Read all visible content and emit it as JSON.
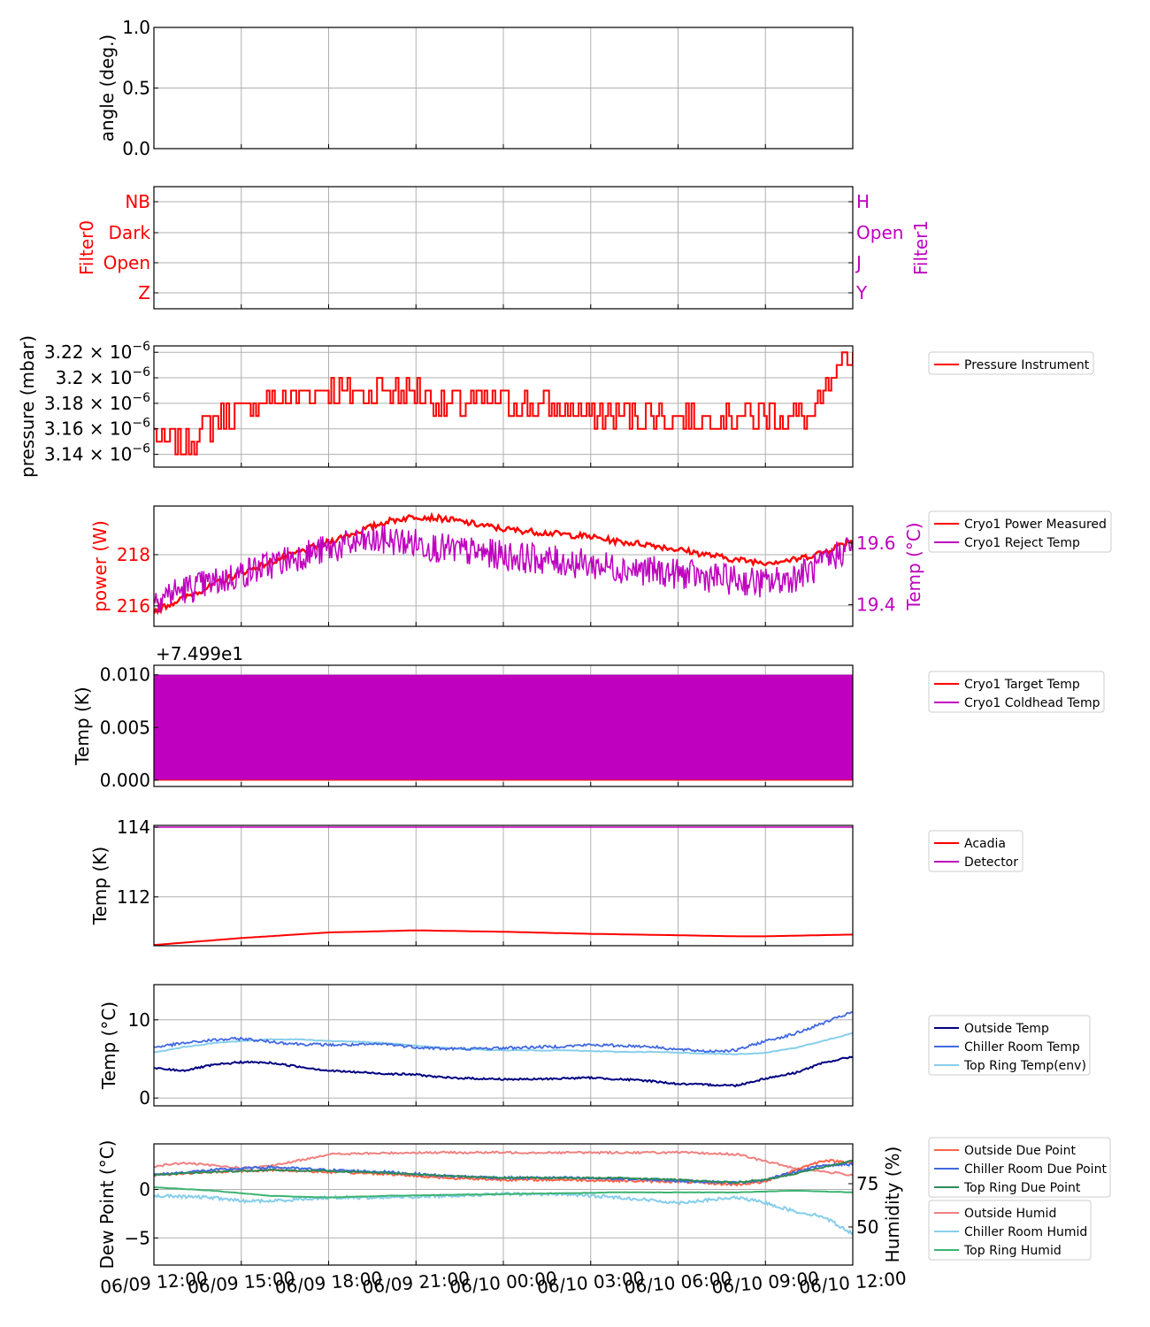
{
  "colors": {
    "red": "#ff0000",
    "magenta": "#bf00bf",
    "navy": "#000080",
    "royalblue": "#4169e1",
    "skyblue": "#87ceeb",
    "seagreen": "#2e8b57",
    "lightcoral": "#f08080",
    "mediumseagreen": "#3cb371",
    "tomato": "#ff6347",
    "grid": "#b0b0b0"
  },
  "x_axis": {
    "range": [
      "06/09 12:00",
      "06/10 12:00"
    ],
    "tick_labels": [
      "06/09 12:00",
      "06/09 15:00",
      "06/09 18:00",
      "06/09 21:00",
      "06/10 00:00",
      "06/10 03:00",
      "06/10 06:00",
      "06/10 09:00",
      "06/10 12:00"
    ]
  },
  "chart_data": [
    {
      "type": "line",
      "panel": "angle",
      "ylabel": "angle (deg.)",
      "ylim": [
        0.0,
        1.0
      ],
      "yticks": [
        "0.0",
        "0.5",
        "1.0"
      ],
      "grid": true,
      "series": []
    },
    {
      "type": "line",
      "panel": "filter",
      "ylabel": "Filter0",
      "ylabel_right": "Filter1",
      "yticks_left": [
        "Z",
        "Open",
        "Dark",
        "NB"
      ],
      "yticks_right": [
        "Y",
        "J",
        "Open",
        "H"
      ],
      "grid": true,
      "series": []
    },
    {
      "type": "line",
      "panel": "pressure",
      "ylabel": "pressure (mbar)",
      "yticks": [
        "3.14",
        "3.16",
        "3.18",
        "3.2",
        "3.22"
      ],
      "ytick_exponent": "−6",
      "ytick_suffix": " × 10",
      "ylim": [
        3.13e-06,
        3.225e-06
      ],
      "legend": [
        "Pressure Instrument"
      ],
      "legend_position": "outside-right",
      "series": [
        {
          "name": "Pressure Instrument",
          "color": "red",
          "x_hours": [
            0,
            0.3,
            0.4,
            1.2,
            1.5,
            2.5,
            3.5,
            5.5,
            6.5,
            8,
            9,
            10,
            12,
            16,
            19,
            21,
            22.5,
            23.5,
            24
          ],
          "values": [
            3.16e-06,
            3.15e-06,
            3.15e-06,
            3.15e-06,
            3.16e-06,
            3.17e-06,
            3.18e-06,
            3.19e-06,
            3.19e-06,
            3.19e-06,
            3.19e-06,
            3.18e-06,
            3.18e-06,
            3.17e-06,
            3.17e-06,
            3.17e-06,
            3.17e-06,
            3.2e-06,
            3.22e-06
          ]
        }
      ]
    },
    {
      "type": "line",
      "panel": "cryo-power",
      "ylabel": "power (W)",
      "ylabel_right": "Temp (°C)",
      "yticks": [
        "216",
        "218"
      ],
      "yticks_right": [
        "19.4",
        "19.6"
      ],
      "ylim": [
        215.2,
        219.9
      ],
      "ylim_right": [
        19.33,
        19.72
      ],
      "legend": [
        "Cryo1 Power Measured",
        "Cryo1 Reject Temp"
      ],
      "legend_position": "outside-right",
      "series": [
        {
          "name": "Cryo1 Power Measured",
          "color": "red",
          "x_hours": [
            0,
            1,
            2,
            3,
            4,
            5,
            6,
            7,
            8,
            9,
            10,
            11,
            12,
            13,
            14,
            15,
            16,
            17,
            18,
            19,
            20,
            21,
            22,
            23,
            24
          ],
          "values": [
            215.8,
            216.3,
            216.8,
            217.3,
            217.7,
            218.1,
            218.5,
            218.9,
            219.3,
            219.5,
            219.4,
            219.2,
            219.0,
            218.9,
            218.8,
            218.7,
            218.5,
            218.4,
            218.2,
            218.0,
            217.8,
            217.7,
            217.8,
            218.1,
            218.6
          ]
        },
        {
          "name": "Cryo1 Reject Temp",
          "color": "magenta",
          "x_hours": [
            0,
            1,
            2,
            3,
            4,
            5,
            6,
            7,
            8,
            9,
            10,
            11,
            12,
            13,
            14,
            15,
            16,
            17,
            18,
            19,
            20,
            21,
            22,
            23,
            24
          ],
          "values": [
            19.42,
            19.45,
            19.47,
            19.5,
            19.53,
            19.56,
            19.58,
            19.6,
            19.61,
            19.6,
            19.58,
            19.57,
            19.56,
            19.55,
            19.54,
            19.53,
            19.52,
            19.51,
            19.5,
            19.49,
            19.48,
            19.47,
            19.49,
            19.53,
            19.6
          ]
        }
      ]
    },
    {
      "type": "line",
      "panel": "cryo-temp",
      "ylabel": "Temp (K)",
      "offset_text": "+7.499e1",
      "yticks": [
        "0.000",
        "0.005",
        "0.010"
      ],
      "ylim": [
        -0.0006,
        0.0109
      ],
      "legend": [
        "Cryo1 Target Temp",
        "Cryo1 Coldhead Temp"
      ],
      "legend_position": "outside-right",
      "series": [
        {
          "name": "Cryo1 Target Temp",
          "color": "red",
          "x_hours": [
            0,
            24
          ],
          "values": [
            0.0,
            0.0
          ]
        },
        {
          "name": "Cryo1 Coldhead Temp",
          "color": "magenta",
          "x_hours": [
            0,
            24
          ],
          "values": [
            0.0,
            0.01
          ],
          "fill_between": true
        }
      ]
    },
    {
      "type": "line",
      "panel": "detector",
      "ylabel": "Temp (K)",
      "yticks": [
        "112",
        "114"
      ],
      "ylim": [
        110.6,
        114.05
      ],
      "legend": [
        "Acadia",
        "Detector"
      ],
      "legend_position": "outside-right",
      "series": [
        {
          "name": "Acadia",
          "color": "red",
          "x_hours": [
            0,
            3,
            6,
            9,
            12,
            15,
            18,
            20,
            21,
            24
          ],
          "values": [
            110.62,
            110.82,
            110.98,
            111.04,
            111.0,
            110.94,
            110.9,
            110.87,
            110.87,
            110.92
          ]
        },
        {
          "name": "Detector",
          "color": "magenta",
          "x_hours": [
            0,
            24
          ],
          "values": [
            114.0,
            114.0
          ]
        }
      ]
    },
    {
      "type": "line",
      "panel": "env-temp",
      "ylabel": "Temp (°C)",
      "yticks": [
        "0",
        "10"
      ],
      "ylim": [
        -1.0,
        14.5
      ],
      "legend": [
        "Outside Temp",
        "Chiller Room Temp",
        "Top Ring Temp(env)"
      ],
      "legend_position": "outside-right",
      "series": [
        {
          "name": "Outside Temp",
          "color": "navy",
          "x_hours": [
            0,
            1,
            2,
            3,
            4,
            5,
            6,
            7,
            8,
            9,
            10,
            11,
            12,
            13,
            14,
            15,
            16,
            17,
            18,
            19,
            20,
            21,
            22,
            23,
            24
          ],
          "values": [
            3.8,
            3.5,
            4.2,
            4.6,
            4.5,
            4.0,
            3.5,
            3.3,
            3.1,
            3.0,
            2.6,
            2.5,
            2.4,
            2.4,
            2.5,
            2.6,
            2.4,
            2.2,
            1.8,
            1.7,
            1.6,
            2.5,
            3.2,
            4.5,
            5.3
          ]
        },
        {
          "name": "Chiller Room Temp",
          "color": "royalblue",
          "x_hours": [
            0,
            1,
            2,
            3,
            4,
            5,
            6,
            7,
            8,
            9,
            10,
            11,
            12,
            13,
            14,
            15,
            16,
            17,
            18,
            19,
            20,
            21,
            22,
            23,
            24
          ],
          "values": [
            6.5,
            7.0,
            7.4,
            7.6,
            7.2,
            6.9,
            6.8,
            6.8,
            6.9,
            6.5,
            6.3,
            6.3,
            6.4,
            6.5,
            6.6,
            6.8,
            6.7,
            6.6,
            6.2,
            6.0,
            6.1,
            7.3,
            8.2,
            9.6,
            11.0
          ]
        },
        {
          "name": "Top Ring Temp(env)",
          "color": "skyblue",
          "x_hours": [
            0,
            1,
            2,
            3,
            4,
            5,
            6,
            7,
            8,
            9,
            10,
            11,
            12,
            13,
            14,
            15,
            16,
            17,
            18,
            19,
            20,
            21,
            22,
            23,
            24
          ],
          "values": [
            5.8,
            6.5,
            7.0,
            7.3,
            7.5,
            7.5,
            7.3,
            7.2,
            7.0,
            6.7,
            6.4,
            6.2,
            6.1,
            6.1,
            6.1,
            6.0,
            5.9,
            5.9,
            5.8,
            5.7,
            5.6,
            5.8,
            6.4,
            7.3,
            8.3
          ]
        }
      ]
    },
    {
      "type": "line",
      "panel": "dew",
      "ylabel": "Dew Point (°C)",
      "ylabel_right": "Humidity (%)",
      "yticks": [
        "−5",
        "0"
      ],
      "yticks_right": [
        "50",
        "75"
      ],
      "ylim": [
        -7.8,
        4.7
      ],
      "ylim_right": [
        28,
        98
      ],
      "legend": [
        "Outside Due Point",
        "Chiller Room Due Point",
        "Top Ring Due Point"
      ],
      "legend2": [
        "Outside Humid",
        "Chiller Room Humid",
        "Top Ring Humid"
      ],
      "legend_position": "outside-right",
      "series": [
        {
          "name": "Outside Due Point",
          "color": "tomato",
          "x_hours": [
            0,
            2,
            4,
            6,
            8,
            10,
            12,
            14,
            16,
            18,
            20,
            21,
            22,
            23,
            24
          ],
          "values": [
            1.5,
            1.8,
            2.0,
            1.8,
            1.6,
            1.2,
            1.0,
            1.0,
            0.9,
            0.8,
            0.5,
            0.8,
            2.0,
            3.0,
            2.8
          ]
        },
        {
          "name": "Chiller Room Due Point",
          "color": "royalblue",
          "x_hours": [
            0,
            2,
            4,
            6,
            8,
            10,
            12,
            14,
            16,
            18,
            20,
            21,
            22,
            23,
            24
          ],
          "values": [
            1.5,
            2.0,
            2.3,
            2.0,
            1.8,
            1.4,
            1.2,
            1.2,
            1.1,
            0.9,
            0.7,
            1.0,
            1.8,
            2.5,
            2.6
          ]
        },
        {
          "name": "Top Ring Due Point",
          "color": "seagreen",
          "x_hours": [
            0,
            2,
            4,
            6,
            8,
            10,
            12,
            14,
            16,
            18,
            20,
            21,
            22,
            23,
            24
          ],
          "values": [
            1.5,
            1.8,
            2.0,
            1.9,
            1.7,
            1.4,
            1.2,
            1.2,
            1.2,
            1.0,
            0.7,
            1.0,
            1.6,
            2.3,
            3.0
          ]
        },
        {
          "name": "Outside Humid",
          "color": "lightcoral",
          "axis": "right",
          "x_hours": [
            0,
            1,
            3,
            4,
            6,
            9,
            12,
            15,
            18,
            20,
            21,
            22,
            23,
            24
          ],
          "values": [
            85,
            87,
            84,
            85,
            92,
            93,
            93,
            93,
            93,
            92,
            88,
            84,
            82,
            80
          ]
        },
        {
          "name": "Chiller Room Humid",
          "color": "skyblue",
          "axis": "right",
          "x_hours": [
            0,
            2,
            3,
            4,
            6,
            8,
            10,
            12,
            14,
            16,
            18,
            20,
            21,
            22,
            23,
            24
          ],
          "values": [
            68,
            67,
            65,
            65,
            67,
            67,
            68,
            69,
            69,
            67,
            64,
            67,
            64,
            59,
            56,
            46
          ]
        },
        {
          "name": "Top Ring Humid",
          "color": "mediumseagreen",
          "axis": "right",
          "x_hours": [
            0,
            2,
            4,
            6,
            8,
            12,
            16,
            20,
            22,
            24
          ],
          "values": [
            73,
            71,
            68,
            67,
            68,
            69,
            70,
            70,
            71,
            70
          ]
        }
      ]
    }
  ]
}
